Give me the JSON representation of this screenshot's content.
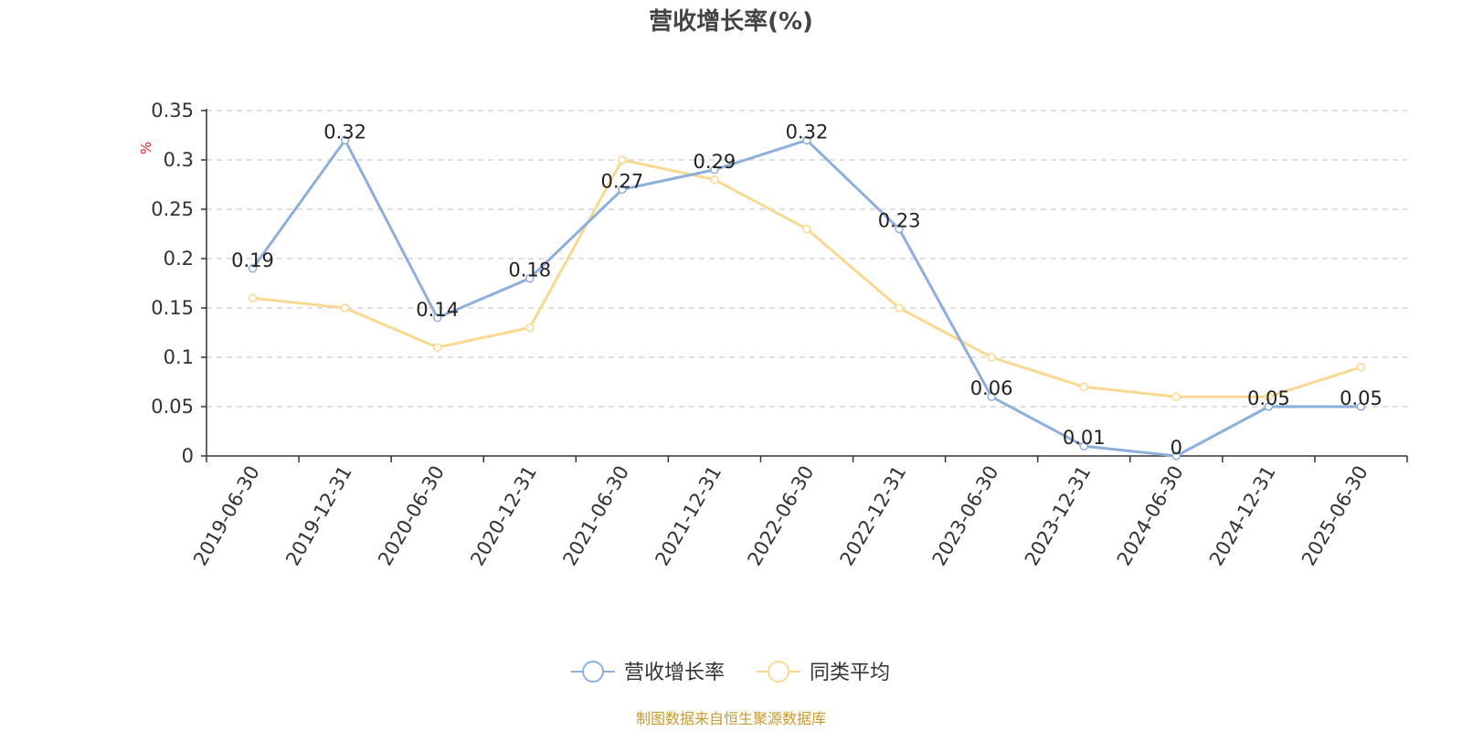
{
  "chart_data": {
    "type": "line",
    "title": "营收增长率(%)",
    "ylabel": "%",
    "xlabel": "",
    "ylim": [
      0,
      0.35
    ],
    "yticks": [
      0,
      0.05,
      0.1,
      0.15,
      0.2,
      0.25,
      0.3,
      0.35
    ],
    "ytick_labels": [
      "0",
      "0.05",
      "0.1",
      "0.15",
      "0.2",
      "0.25",
      "0.3",
      "0.35"
    ],
    "grid": "horizontal dashed",
    "legend_position": "bottom-center",
    "categories": [
      "2019-06-30",
      "2019-12-31",
      "2020-06-30",
      "2020-12-31",
      "2021-06-30",
      "2021-12-31",
      "2022-06-30",
      "2022-12-31",
      "2023-06-30",
      "2023-12-31",
      "2024-06-30",
      "2024-12-31",
      "2025-06-30"
    ],
    "series": [
      {
        "name": "营收增长率",
        "color": "#8eaedb",
        "values": [
          0.19,
          0.32,
          0.14,
          0.18,
          0.27,
          0.29,
          0.32,
          0.23,
          0.06,
          0.01,
          0,
          0.05,
          0.05
        ],
        "data_labels": [
          "0.19",
          "0.32",
          "0.14",
          "0.18",
          "0.27",
          "0.29",
          "0.32",
          "0.23",
          "0.06",
          "0.01",
          "0",
          "0.05",
          "0.05"
        ]
      },
      {
        "name": "同类平均",
        "color": "#f9d992",
        "values": [
          0.16,
          0.15,
          0.11,
          0.13,
          0.3,
          0.28,
          0.23,
          0.15,
          0.1,
          0.07,
          0.06,
          0.06,
          0.09
        ]
      }
    ],
    "source": "制图数据来自恒生聚源数据库"
  }
}
